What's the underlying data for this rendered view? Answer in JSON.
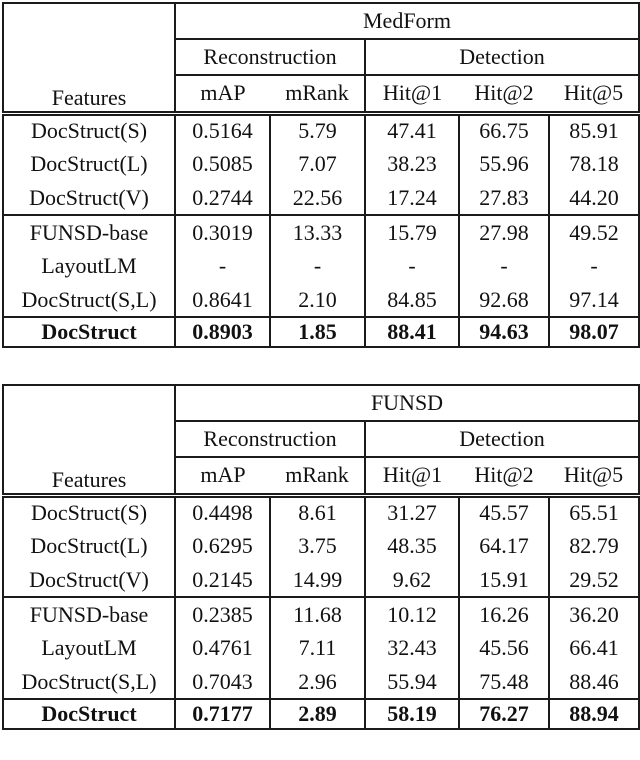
{
  "page": {
    "background_color": "#ffffff",
    "text_color": "#111111",
    "rule_color": "#1b1b1b"
  },
  "tables": [
    {
      "id": "medform",
      "features_header": "Features",
      "dataset_header": "MedForm",
      "section_headers": {
        "reconstruction": "Reconstruction",
        "detection": "Detection"
      },
      "metric_headers": [
        "mAP",
        "mRank",
        "Hit@1",
        "Hit@2",
        "Hit@5"
      ],
      "groups": [
        {
          "rows": [
            {
              "label": "DocStruct(S)",
              "values": [
                "0.5164",
                "5.79",
                "47.41",
                "66.75",
                "85.91"
              ]
            },
            {
              "label": "DocStruct(L)",
              "values": [
                "0.5085",
                "7.07",
                "38.23",
                "55.96",
                "78.18"
              ]
            },
            {
              "label": "DocStruct(V)",
              "values": [
                "0.2744",
                "22.56",
                "17.24",
                "27.83",
                "44.20"
              ]
            }
          ]
        },
        {
          "rows": [
            {
              "label": "FUNSD-base",
              "values": [
                "0.3019",
                "13.33",
                "15.79",
                "27.98",
                "49.52"
              ]
            },
            {
              "label": "LayoutLM",
              "values": [
                "-",
                "-",
                "-",
                "-",
                "-"
              ]
            },
            {
              "label": "DocStruct(S,L)",
              "values": [
                "0.8641",
                "2.10",
                "84.85",
                "92.68",
                "97.14"
              ]
            }
          ]
        },
        {
          "rows": [
            {
              "label": "DocStruct",
              "values": [
                "0.8903",
                "1.85",
                "88.41",
                "94.63",
                "98.07"
              ],
              "bold": true
            }
          ]
        }
      ]
    },
    {
      "id": "funsd",
      "features_header": "Features",
      "dataset_header": "FUNSD",
      "section_headers": {
        "reconstruction": "Reconstruction",
        "detection": "Detection"
      },
      "metric_headers": [
        "mAP",
        "mRank",
        "Hit@1",
        "Hit@2",
        "Hit@5"
      ],
      "groups": [
        {
          "rows": [
            {
              "label": "DocStruct(S)",
              "values": [
                "0.4498",
                "8.61",
                "31.27",
                "45.57",
                "65.51"
              ]
            },
            {
              "label": "DocStruct(L)",
              "values": [
                "0.6295",
                "3.75",
                "48.35",
                "64.17",
                "82.79"
              ]
            },
            {
              "label": "DocStruct(V)",
              "values": [
                "0.2145",
                "14.99",
                "9.62",
                "15.91",
                "29.52"
              ]
            }
          ]
        },
        {
          "rows": [
            {
              "label": "FUNSD-base",
              "values": [
                "0.2385",
                "11.68",
                "10.12",
                "16.26",
                "36.20"
              ]
            },
            {
              "label": "LayoutLM",
              "values": [
                "0.4761",
                "7.11",
                "32.43",
                "45.56",
                "66.41"
              ]
            },
            {
              "label": "DocStruct(S,L)",
              "values": [
                "0.7043",
                "2.96",
                "55.94",
                "75.48",
                "88.46"
              ]
            }
          ]
        },
        {
          "rows": [
            {
              "label": "DocStruct",
              "values": [
                "0.7177",
                "2.89",
                "58.19",
                "76.27",
                "88.94"
              ],
              "bold": true
            }
          ]
        }
      ]
    }
  ]
}
